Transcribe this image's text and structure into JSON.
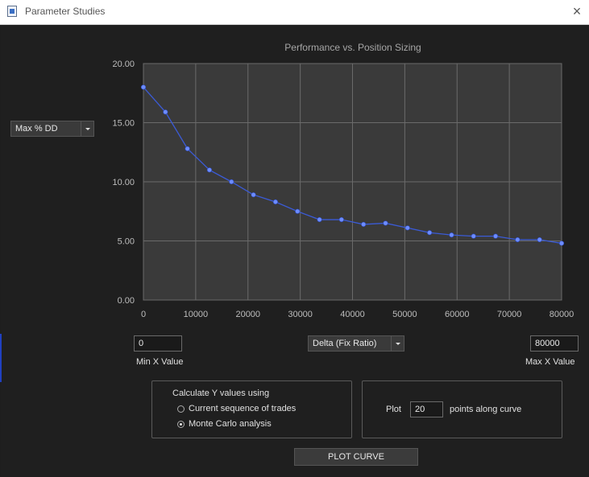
{
  "window": {
    "title": "Parameter Studies"
  },
  "y_selector": {
    "selected": "Max % DD"
  },
  "chart_data": {
    "type": "line",
    "title": "Performance vs. Position Sizing",
    "xlabel": "",
    "ylabel": "",
    "xlim": [
      0,
      80000
    ],
    "ylim": [
      0,
      20
    ],
    "x_ticks": [
      "0",
      "10000",
      "20000",
      "30000",
      "40000",
      "50000",
      "60000",
      "70000",
      "80000"
    ],
    "y_ticks": [
      "0.00",
      "5.00",
      "10.00",
      "15.00",
      "20.00"
    ],
    "grid": true,
    "line_color": "#3b5bd6",
    "marker_color": "#6d8cff",
    "series": [
      {
        "x": [
          0,
          4211,
          8421,
          12632,
          16842,
          21053,
          25263,
          29474,
          33684,
          37895,
          42105,
          46316,
          50526,
          54737,
          58947,
          63158,
          67368,
          71579,
          75789,
          80000
        ],
        "values": [
          18.0,
          15.9,
          12.8,
          11.0,
          10.0,
          8.9,
          8.3,
          7.5,
          6.8,
          6.8,
          6.4,
          6.5,
          6.1,
          5.7,
          5.5,
          5.4,
          5.4,
          5.1,
          5.1,
          4.8
        ]
      }
    ]
  },
  "x_range": {
    "min_value": "0",
    "min_label": "Min X Value",
    "max_value": "80000",
    "max_label": "Max X Value"
  },
  "x_selector": {
    "selected": "Delta (Fix Ratio)"
  },
  "calc_group": {
    "heading": "Calculate Y values using",
    "options": [
      {
        "label": "Current sequence of trades",
        "checked": false
      },
      {
        "label": "Monte Carlo analysis",
        "checked": true
      }
    ]
  },
  "plot_group": {
    "prefix": "Plot",
    "points": "20",
    "suffix": "points along curve"
  },
  "plot_button": {
    "label": "PLOT CURVE"
  }
}
